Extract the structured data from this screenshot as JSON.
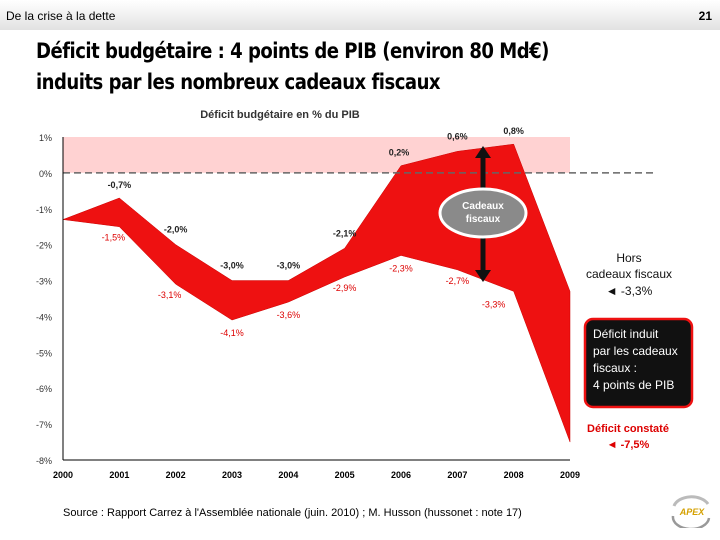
{
  "header": {
    "section": "De la crise à la dette",
    "page_number": "21"
  },
  "title_lines": [
    "Déficit budgétaire : 4 points de PIB (environ 80 Md€)",
    "induits par les nombreux cadeaux fiscaux"
  ],
  "chart_data": {
    "type": "area",
    "title": "Déficit budgétaire en % du PIB",
    "x": [
      "2000",
      "2001",
      "2002",
      "2003",
      "2004",
      "2005",
      "2006",
      "2007",
      "2008",
      "2009"
    ],
    "ylim": [
      -8,
      1
    ],
    "yticks": [
      "1%",
      "0%",
      "-1%",
      "-2%",
      "-3%",
      "-4%",
      "-5%",
      "-6%",
      "-7%",
      "-8%"
    ],
    "series": [
      {
        "name": "Hors cadeaux fiscaux",
        "values": [
          -1.3,
          -0.7,
          -2.0,
          -3.0,
          -3.0,
          -2.1,
          0.2,
          0.6,
          0.8,
          -3.3
        ],
        "labels": [
          "",
          "-0,7%",
          "-2,0%",
          "-3,0%",
          "-3,0%",
          "-2,1%",
          "0,2%",
          "0,6%",
          "0,8%",
          ""
        ]
      },
      {
        "name": "Déficit constaté",
        "values": [
          -1.3,
          -1.5,
          -3.1,
          -4.1,
          -3.6,
          -2.9,
          -2.3,
          -2.7,
          -3.3,
          -7.5
        ],
        "labels": [
          "",
          "-1,5%",
          "-3,1%",
          "-4,1%",
          "-3,6%",
          "-2,9%",
          "-2,3%",
          "-2,7%",
          "-3,3%",
          ""
        ]
      }
    ],
    "annotations": {
      "cadeaux": "Cadeaux fiscaux",
      "hors_line1": "Hors",
      "hors_line2": "cadeaux fiscaux",
      "hors_value": "◄ -3,3%",
      "box_lines": [
        "Déficit induit",
        "par les cadeaux",
        "fiscaux :",
        "4 points de PIB"
      ],
      "constate_line1": "Déficit constaté",
      "constate_value": "◄ -7,5%"
    },
    "colors": {
      "band": "#ee1111",
      "background_positive": "#ffd2d2",
      "zero_line": "#666666",
      "label_red": "#dd0000",
      "box": "#111111"
    }
  },
  "source_text": "Source : Rapport Carrez à l'Assemblée nationale (juin. 2010) ; M. Husson (hussonet : note 17)",
  "logo": {
    "text": "APEX"
  }
}
